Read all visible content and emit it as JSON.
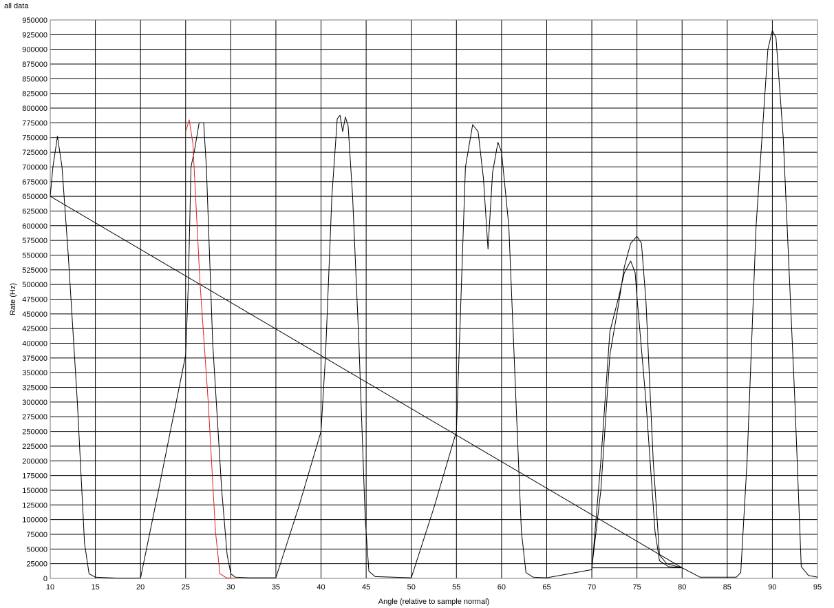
{
  "chart_data": {
    "type": "line",
    "title": "all data",
    "xlabel": "Angle (relative to sample normal)",
    "ylabel": "Rate (Hz)",
    "xlim": [
      10,
      95
    ],
    "ylim": [
      0,
      950000
    ],
    "x_ticks": [
      10,
      15,
      20,
      25,
      30,
      35,
      40,
      45,
      50,
      55,
      60,
      65,
      70,
      75,
      80,
      85,
      90,
      95
    ],
    "y_ticks": [
      0,
      25000,
      50000,
      75000,
      100000,
      125000,
      150000,
      175000,
      200000,
      225000,
      250000,
      275000,
      300000,
      325000,
      350000,
      375000,
      400000,
      425000,
      450000,
      475000,
      500000,
      525000,
      550000,
      575000,
      600000,
      625000,
      650000,
      675000,
      700000,
      725000,
      750000,
      775000,
      800000,
      825000,
      850000,
      875000,
      900000,
      925000,
      950000
    ],
    "grid": true,
    "colors": {
      "main": "#000000",
      "highlight": "#e02020",
      "grid": "#000000",
      "plot_border": "#7a7a7a"
    },
    "series": [
      {
        "color": "#000000",
        "points": [
          [
            10,
            650000
          ],
          [
            10.3,
            700000
          ],
          [
            10.8,
            752000
          ],
          [
            11.3,
            700000
          ],
          [
            12,
            550000
          ],
          [
            13,
            300000
          ],
          [
            13.8,
            60000
          ],
          [
            14.3,
            8000
          ],
          [
            15,
            2000
          ],
          [
            17.5,
            500
          ],
          [
            20,
            500
          ],
          [
            22,
            150000
          ],
          [
            25,
            380000
          ],
          [
            25.3,
            500000
          ],
          [
            25.6,
            700000
          ],
          [
            26,
            730000
          ],
          [
            26.5,
            775000
          ],
          [
            27,
            775000
          ],
          [
            27.3,
            700000
          ],
          [
            28,
            400000
          ],
          [
            29,
            150000
          ],
          [
            29.6,
            40000
          ],
          [
            30,
            8000
          ],
          [
            30.5,
            2000
          ],
          [
            32,
            1000
          ],
          [
            35,
            1000
          ],
          [
            37.5,
            120000
          ],
          [
            40,
            250000
          ],
          [
            40.5,
            380000
          ],
          [
            41.2,
            650000
          ],
          [
            41.8,
            782000
          ],
          [
            42.1,
            788000
          ],
          [
            42.4,
            760000
          ],
          [
            42.7,
            785000
          ],
          [
            43,
            770000
          ],
          [
            43.5,
            650000
          ],
          [
            44.2,
            400000
          ],
          [
            44.9,
            100000
          ],
          [
            45.3,
            12000
          ],
          [
            46,
            3000
          ],
          [
            50,
            1000
          ],
          [
            52.5,
            120000
          ],
          [
            55,
            250000
          ],
          [
            56,
            700000
          ],
          [
            56.8,
            772000
          ],
          [
            57.4,
            760000
          ],
          [
            58,
            680000
          ],
          [
            58.5,
            560000
          ],
          [
            59,
            690000
          ],
          [
            59.6,
            742000
          ],
          [
            60,
            725000
          ],
          [
            60.8,
            600000
          ],
          [
            61.6,
            300000
          ],
          [
            62.2,
            80000
          ],
          [
            62.7,
            10000
          ],
          [
            63.5,
            2000
          ],
          [
            65,
            1000
          ],
          [
            67.5,
            8000
          ],
          [
            70,
            15000
          ],
          [
            71,
            200000
          ],
          [
            72,
            420000
          ],
          [
            73,
            480000
          ],
          [
            73.6,
            520000
          ],
          [
            74.3,
            540000
          ],
          [
            74.8,
            520000
          ],
          [
            75,
            480000
          ],
          [
            76,
            300000
          ],
          [
            77,
            80000
          ],
          [
            77.5,
            30000
          ],
          [
            78.5,
            20000
          ],
          [
            80,
            18000
          ],
          [
            10,
            650000
          ],
          [
            80,
            18000
          ],
          [
            70,
            18000
          ],
          [
            71,
            150000
          ],
          [
            72,
            380000
          ],
          [
            73,
            470000
          ],
          [
            73.6,
            530000
          ],
          [
            74.3,
            570000
          ],
          [
            75,
            582000
          ],
          [
            75.5,
            570000
          ],
          [
            76,
            470000
          ],
          [
            76.8,
            200000
          ],
          [
            77.5,
            40000
          ],
          [
            78.3,
            25000
          ],
          [
            80,
            18000
          ],
          [
            82,
            2000
          ],
          [
            86,
            2000
          ],
          [
            86.5,
            10000
          ],
          [
            87.2,
            200000
          ],
          [
            88.2,
            600000
          ],
          [
            89.5,
            900000
          ],
          [
            90,
            932000
          ],
          [
            90.4,
            920000
          ],
          [
            91.2,
            750000
          ],
          [
            92.5,
            300000
          ],
          [
            93.2,
            20000
          ],
          [
            94,
            5000
          ],
          [
            95,
            2000
          ]
        ]
      },
      {
        "color": "#e02020",
        "points": [
          [
            25,
            760000
          ],
          [
            25.4,
            780000
          ],
          [
            25.8,
            740000
          ],
          [
            26.6,
            500000
          ],
          [
            27.5,
            300000
          ],
          [
            28.3,
            80000
          ],
          [
            28.8,
            8000
          ],
          [
            29.5,
            1000
          ],
          [
            30.5,
            0
          ]
        ]
      }
    ]
  }
}
